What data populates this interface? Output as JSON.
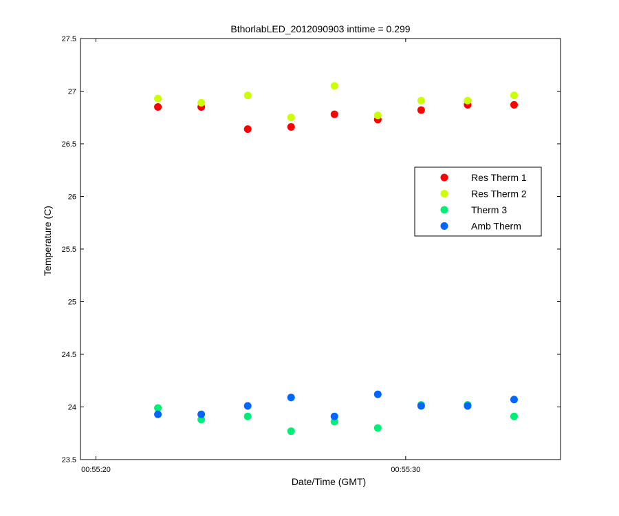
{
  "chart_data": {
    "type": "scatter",
    "title": "BthorlabLED_2012090903 inttime = 0.299",
    "xlabel": "Date/Time (GMT)",
    "ylabel": "Temperature (C)",
    "xlim": [
      -0.5,
      15.0
    ],
    "ylim": [
      23.5,
      27.5
    ],
    "x_unit": "seconds after 00:55:20",
    "xticks": [
      {
        "value": 0,
        "label": "00:55:20"
      },
      {
        "value": 10,
        "label": "00:55:30"
      }
    ],
    "yticks": [
      {
        "value": 23.5,
        "label": "23.5"
      },
      {
        "value": 24,
        "label": "24"
      },
      {
        "value": 24.5,
        "label": "24.5"
      },
      {
        "value": 25,
        "label": "25"
      },
      {
        "value": 25.5,
        "label": "25.5"
      },
      {
        "value": 26,
        "label": "26"
      },
      {
        "value": 26.5,
        "label": "26.5"
      },
      {
        "value": 27,
        "label": "27"
      },
      {
        "value": 27.5,
        "label": "27.5"
      }
    ],
    "legend_position": "upper-right",
    "grid": false,
    "series": [
      {
        "name": "Res Therm 1",
        "color": "#ff0000",
        "x": [
          2.0,
          3.4,
          4.9,
          6.3,
          7.7,
          9.1,
          10.5,
          12.0,
          13.5
        ],
        "y": [
          26.85,
          26.85,
          26.64,
          26.66,
          26.78,
          26.73,
          26.82,
          26.87,
          26.87
        ]
      },
      {
        "name": "Res Therm 2",
        "color": "#ccff00",
        "x": [
          2.0,
          3.4,
          4.9,
          6.3,
          7.7,
          9.1,
          10.5,
          12.0,
          13.5
        ],
        "y": [
          26.93,
          26.89,
          26.96,
          26.75,
          27.05,
          26.77,
          26.91,
          26.91,
          26.96
        ]
      },
      {
        "name": "Therm 3",
        "color": "#00ee77",
        "x": [
          2.0,
          3.4,
          4.9,
          6.3,
          7.7,
          9.1,
          10.5,
          12.0,
          13.5
        ],
        "y": [
          23.99,
          23.88,
          23.91,
          23.77,
          23.86,
          23.8,
          24.02,
          24.02,
          23.91
        ]
      },
      {
        "name": "Amb Therm",
        "color": "#0066ff",
        "x": [
          2.0,
          3.4,
          4.9,
          6.3,
          7.7,
          9.1,
          10.5,
          12.0,
          13.5
        ],
        "y": [
          23.93,
          23.93,
          24.01,
          24.09,
          23.91,
          24.12,
          24.01,
          24.01,
          24.07
        ]
      }
    ]
  }
}
